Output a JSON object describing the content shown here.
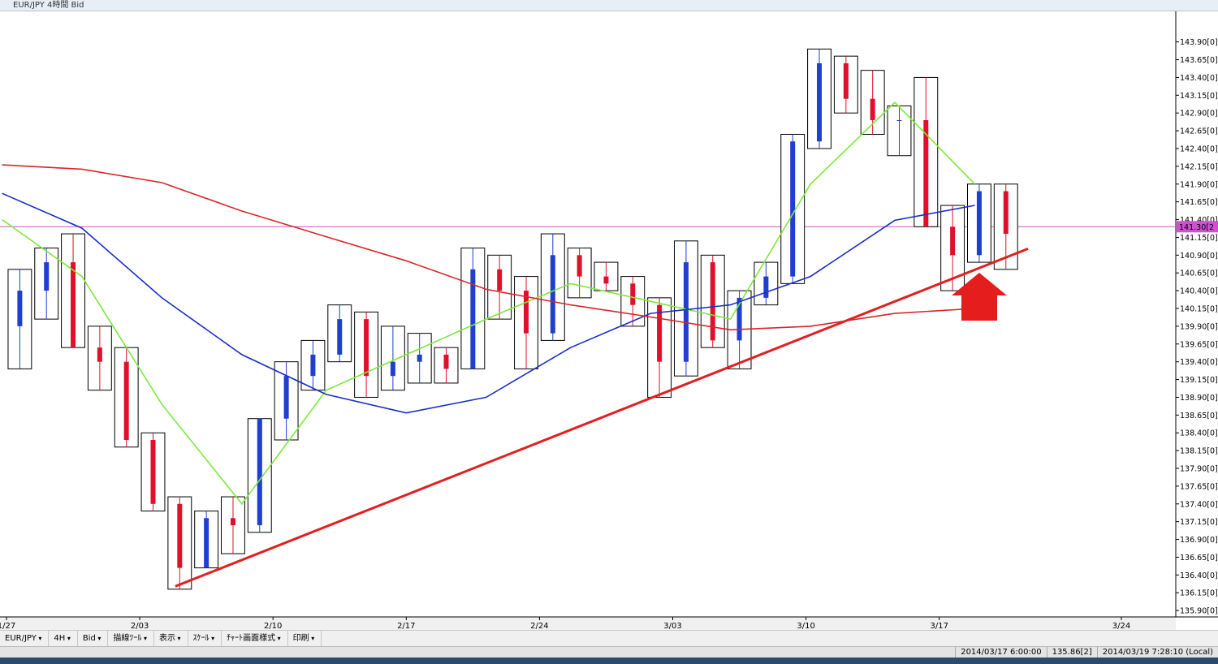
{
  "window": {
    "title": "EUR/JPY 4時間 Bid"
  },
  "toolbar": [
    "EUR/JPY",
    "4H",
    "Bid",
    "描線ﾂｰﾙ",
    "表示",
    "ｽｹｰﾙ",
    "ﾁｬｰﾄ画面様式",
    "印刷"
  ],
  "status_bar": [
    "2014/03/17 6:00:00",
    "135.86[2]",
    "2014/03/19 7:28:10 (Local)"
  ],
  "chart_data": {
    "type": "candlestick",
    "up_color": "#1f3fd0",
    "down_color": "#e0102a",
    "x": [
      3,
      9,
      15,
      21,
      27,
      33,
      39,
      45,
      51,
      57,
      63,
      69,
      75,
      81,
      87,
      93,
      99,
      105,
      111,
      117,
      123,
      129,
      135,
      141,
      147,
      153,
      159,
      165,
      171,
      177,
      183,
      189,
      195,
      201,
      207,
      213,
      219,
      225
    ],
    "open": [
      139.9,
      140.4,
      140.8,
      139.6,
      139.4,
      138.3,
      137.4,
      136.5,
      137.2,
      137.1,
      138.6,
      139.2,
      139.5,
      140.0,
      139.2,
      139.4,
      139.5,
      139.3,
      140.7,
      140.4,
      139.8,
      140.9,
      140.6,
      140.5,
      140.2,
      139.4,
      140.8,
      139.7,
      140.3,
      140.6,
      142.5,
      143.6,
      143.1,
      142.8,
      142.8,
      141.3,
      140.9,
      141.8
    ],
    "high": [
      140.7,
      141.0,
      141.2,
      139.9,
      139.6,
      138.4,
      137.5,
      137.3,
      137.5,
      138.6,
      139.4,
      139.7,
      140.2,
      140.1,
      139.9,
      139.8,
      139.6,
      141.0,
      140.9,
      140.6,
      141.2,
      141.0,
      140.8,
      140.6,
      140.3,
      141.1,
      140.9,
      140.4,
      140.8,
      142.6,
      143.8,
      143.7,
      143.5,
      143.0,
      143.4,
      141.6,
      141.9,
      141.9
    ],
    "low": [
      139.3,
      140.0,
      139.6,
      139.0,
      138.2,
      137.3,
      136.2,
      136.5,
      136.7,
      137.0,
      138.3,
      139.0,
      139.4,
      138.9,
      139.0,
      139.1,
      139.1,
      139.3,
      140.0,
      139.3,
      139.7,
      140.3,
      140.4,
      139.9,
      138.9,
      139.2,
      139.6,
      139.3,
      140.2,
      140.5,
      142.4,
      142.9,
      142.6,
      142.3,
      141.3,
      140.4,
      140.8,
      140.7
    ],
    "close": [
      140.4,
      140.8,
      139.6,
      139.4,
      138.3,
      137.4,
      136.5,
      137.2,
      137.1,
      138.6,
      139.2,
      139.5,
      140.0,
      139.2,
      139.4,
      139.5,
      139.3,
      140.7,
      140.4,
      139.8,
      140.9,
      140.6,
      140.5,
      140.2,
      139.4,
      140.8,
      139.7,
      140.3,
      140.6,
      142.5,
      143.6,
      143.1,
      142.8,
      142.8,
      141.3,
      140.9,
      141.8,
      141.2
    ],
    "lines": [
      {
        "color": "#7ee83a",
        "x": [
          -1,
          17,
          35,
          53,
          72,
          90,
          108,
          127,
          145,
          163,
          181,
          200,
          218
        ],
        "values": [
          141.4,
          140.6,
          138.8,
          137.4,
          139.0,
          139.5,
          140.0,
          140.5,
          140.25,
          140.0,
          141.9,
          143.05,
          141.9
        ]
      },
      {
        "color": "#1a2fc8",
        "x": [
          -1,
          17,
          35,
          53,
          72,
          90,
          108,
          127,
          145,
          163,
          181,
          200,
          218
        ],
        "values": [
          141.77,
          141.28,
          140.3,
          139.5,
          138.94,
          138.68,
          138.9,
          139.6,
          140.08,
          140.2,
          140.6,
          141.39,
          141.6
        ]
      },
      {
        "color": "#d8252a",
        "x": [
          -1,
          17,
          35,
          53,
          72,
          90,
          108,
          127,
          145,
          163,
          181,
          200,
          218
        ],
        "values": [
          142.17,
          142.11,
          141.92,
          141.52,
          141.16,
          140.82,
          140.42,
          140.2,
          140.03,
          139.85,
          139.9,
          140.08,
          140.15
        ]
      }
    ],
    "trendline": {
      "color": "#e02020",
      "x": [
        38,
        230
      ],
      "values": [
        136.24,
        140.99
      ]
    },
    "price_line": {
      "value": 141.3,
      "label": "141.30[2",
      "color": "#d050d0"
    },
    "xlim": [
      -1.46,
      263.25
    ],
    "xticks": [
      {
        "value": 0,
        "label": "1/27"
      },
      {
        "value": 30,
        "label": "2/03"
      },
      {
        "value": 60,
        "label": "2/10"
      },
      {
        "value": 90,
        "label": "2/17"
      },
      {
        "value": 120,
        "label": "2/24"
      },
      {
        "value": 150,
        "label": "3/03"
      },
      {
        "value": 180,
        "label": "3/10"
      },
      {
        "value": 210,
        "label": "3/17"
      },
      {
        "value": 251,
        "label": "3/24"
      }
    ],
    "ylim": [
      135.81,
      144.33
    ],
    "yticks": [
      {
        "value": 135.9,
        "label": "135.90[0]"
      },
      {
        "value": 136.15,
        "label": "136.15[0]"
      },
      {
        "value": 136.4,
        "label": "136.40[0]"
      },
      {
        "value": 136.65,
        "label": "136.65[0]"
      },
      {
        "value": 136.9,
        "label": "136.90[0]"
      },
      {
        "value": 137.15,
        "label": "137.15[0]"
      },
      {
        "value": 137.4,
        "label": "137.40[0]"
      },
      {
        "value": 137.65,
        "label": "137.65[0]"
      },
      {
        "value": 137.9,
        "label": "137.90[0]"
      },
      {
        "value": 138.15,
        "label": "138.15[0]"
      },
      {
        "value": 138.4,
        "label": "138.40[0]"
      },
      {
        "value": 138.65,
        "label": "138.65[0]"
      },
      {
        "value": 138.9,
        "label": "138.90[0]"
      },
      {
        "value": 139.15,
        "label": "139.15[0]"
      },
      {
        "value": 139.4,
        "label": "139.40[0]"
      },
      {
        "value": 139.65,
        "label": "139.65[0]"
      },
      {
        "value": 139.9,
        "label": "139.90[0]"
      },
      {
        "value": 140.15,
        "label": "140.15[0]"
      },
      {
        "value": 140.4,
        "label": "140.40[0]"
      },
      {
        "value": 140.65,
        "label": "140.65[0]"
      },
      {
        "value": 140.9,
        "label": "140.90[0]"
      },
      {
        "value": 141.15,
        "label": "141.15[0]"
      },
      {
        "value": 141.4,
        "label": "141.40[0]"
      },
      {
        "value": 141.65,
        "label": "141.65[0]"
      },
      {
        "value": 141.9,
        "label": "141.90[0]"
      },
      {
        "value": 142.15,
        "label": "142.15[0]"
      },
      {
        "value": 142.4,
        "label": "142.40[0]"
      },
      {
        "value": 142.65,
        "label": "142.65[0]"
      },
      {
        "value": 142.9,
        "label": "142.90[0]"
      },
      {
        "value": 143.15,
        "label": "143.15[0]"
      },
      {
        "value": 143.4,
        "label": "143.40[0]"
      },
      {
        "value": 143.65,
        "label": "143.65[0]"
      },
      {
        "value": 143.9,
        "label": "143.90[0]"
      }
    ]
  }
}
